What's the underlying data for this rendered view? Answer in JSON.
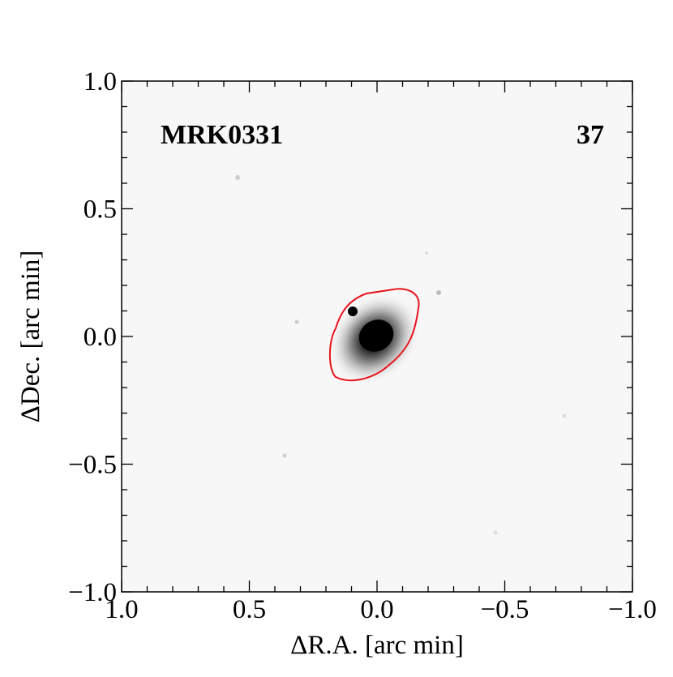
{
  "chart_data": {
    "type": "image",
    "annotations": [
      "MRK0331",
      "37"
    ],
    "xlabel": "ΔR.A. [arc min]",
    "ylabel": "ΔDec. [arc min]",
    "xlim": [
      1.0,
      -1.0
    ],
    "ylim": [
      -1.0,
      1.0
    ],
    "xticks": [
      {
        "value": 1.0,
        "label": "1.0"
      },
      {
        "value": 0.5,
        "label": "0.5"
      },
      {
        "value": 0.0,
        "label": "0.0"
      },
      {
        "value": -0.5,
        "label": "−0.5"
      },
      {
        "value": -1.0,
        "label": "−1.0"
      }
    ],
    "yticks": [
      {
        "value": -1.0,
        "label": "−1.0"
      },
      {
        "value": -0.5,
        "label": "−0.5"
      },
      {
        "value": 0.0,
        "label": "0.0"
      },
      {
        "value": 0.5,
        "label": "0.5"
      },
      {
        "value": 1.0,
        "label": "1.0"
      }
    ],
    "contour_color": "#e8141c"
  }
}
